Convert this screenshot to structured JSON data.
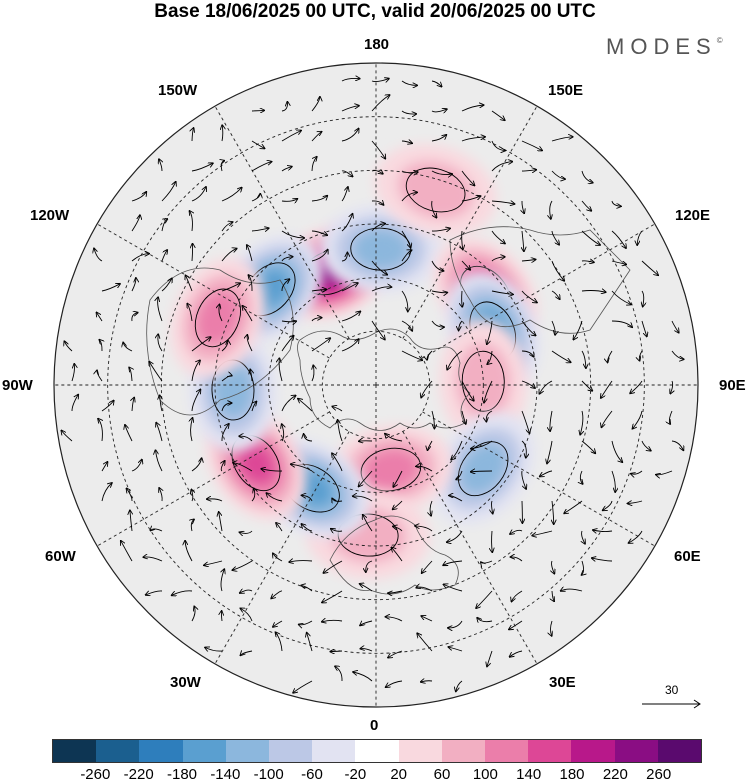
{
  "title": "Base 18/06/2025 00 UTC, valid 20/06/2025 00 UTC",
  "brand": "MODES",
  "brand_mark": "©",
  "longitude_labels": {
    "lon_180": "180",
    "lon_150e": "150E",
    "lon_120e": "120E",
    "lon_90e": "90E",
    "lon_60e": "60E",
    "lon_30e": "30E",
    "lon_0": "0",
    "lon_30w": "30W",
    "lon_60w": "60W",
    "lon_90w": "90W",
    "lon_120w": "120W",
    "lon_150w": "150W"
  },
  "scale_arrow_label": "30",
  "colorbar": {
    "colors": [
      "#0d3553",
      "#1b5f8f",
      "#2e7ebc",
      "#5a9fd0",
      "#8cb7dd",
      "#bcc8e6",
      "#e2e3f2",
      "#ffffff",
      "#f9d9df",
      "#f2afc2",
      "#eb7eaa",
      "#dd4796",
      "#b8188a",
      "#8a0d83",
      "#5a0a6e"
    ],
    "tick_labels": [
      "-260",
      "-220",
      "-180",
      "-140",
      "-100",
      "-60",
      "-20",
      "20",
      "60",
      "100",
      "140",
      "180",
      "220",
      "260"
    ]
  },
  "anomalies": [
    {
      "name": "anomaly-positive-150w",
      "lon": -158,
      "colat": 34,
      "sign": 1,
      "value": 230
    },
    {
      "name": "anomaly-negative-130w",
      "lon": -132,
      "colat": 40,
      "sign": -1,
      "value": -160
    },
    {
      "name": "anomaly-negative-180",
      "lon": 178,
      "colat": 38,
      "sign": -1,
      "value": -120
    },
    {
      "name": "anomaly-positive-160e",
      "lon": 163,
      "colat": 57,
      "sign": 1,
      "value": 90
    },
    {
      "name": "anomaly-positive-130e",
      "lon": 130,
      "colat": 40,
      "sign": 1,
      "value": 150
    },
    {
      "name": "anomaly-negative-115e",
      "lon": 115,
      "colat": 36,
      "sign": -1,
      "value": -170
    },
    {
      "name": "anomaly-positive-90e",
      "lon": 92,
      "colat": 30,
      "sign": 1,
      "value": 80
    },
    {
      "name": "anomaly-negative-50e",
      "lon": 52,
      "colat": 38,
      "sign": -1,
      "value": -110
    },
    {
      "name": "anomaly-positive-10e",
      "lon": 10,
      "colat": 24,
      "sign": 1,
      "value": 120
    },
    {
      "name": "anomaly-positive-5w",
      "lon": -3,
      "colat": 42,
      "sign": 1,
      "value": 90
    },
    {
      "name": "anomaly-negative-30w",
      "lon": -32,
      "colat": 34,
      "sign": -1,
      "value": -170
    },
    {
      "name": "anomaly-positive-55w",
      "lon": -57,
      "colat": 40,
      "sign": 1,
      "value": 180
    },
    {
      "name": "anomaly-negative-85w",
      "lon": -88,
      "colat": 40,
      "sign": -1,
      "value": -140
    },
    {
      "name": "anomaly-positive-115w",
      "lon": -113,
      "colat": 48,
      "sign": 1,
      "value": 130
    }
  ]
}
